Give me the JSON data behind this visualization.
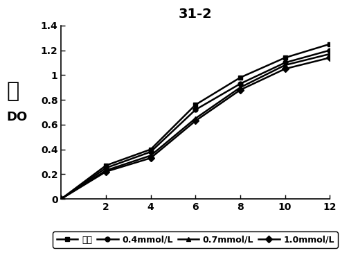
{
  "title": "31-2",
  "x": [
    0,
    2,
    4,
    6,
    8,
    10,
    12
  ],
  "series": {
    "空白": [
      0,
      0.27,
      0.4,
      0.76,
      0.98,
      1.14,
      1.25
    ],
    "0.4mmol/L": [
      0,
      0.25,
      0.38,
      0.72,
      0.93,
      1.1,
      1.2
    ],
    "0.7mmol/L": [
      0,
      0.23,
      0.35,
      0.65,
      0.9,
      1.08,
      1.17
    ],
    "1.0mmol/L": [
      0,
      0.22,
      0.33,
      0.63,
      0.88,
      1.05,
      1.14
    ]
  },
  "markers": {
    "空白": "s",
    "0.4mmol/L": "o",
    "0.7mmol/L": "^",
    "1.0mmol/L": "D"
  },
  "legend_labels": [
    "空白",
    "0.4mmol/L",
    "0.7mmol/L",
    "1.0mmol/L"
  ],
  "line_color": "#000000",
  "ylim": [
    0,
    1.4
  ],
  "xlim": [
    0,
    12
  ],
  "xticks": [
    0,
    2,
    4,
    6,
    8,
    10,
    12
  ],
  "yticks": [
    0,
    0.2,
    0.4,
    0.6,
    0.8,
    1.0,
    1.2,
    1.4
  ],
  "title_fontsize": 14,
  "tick_fontsize": 10,
  "legend_fontsize": 9,
  "linewidth": 1.8,
  "markersize": 5,
  "ylabel_cn": "値",
  "ylabel_en": "DO"
}
